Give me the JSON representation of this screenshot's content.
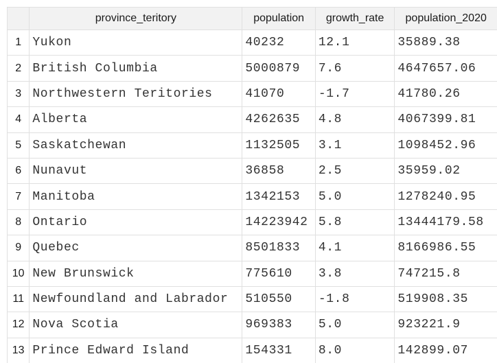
{
  "table": {
    "columns": [
      "province_teritory",
      "population",
      "growth_rate",
      "population_2020"
    ],
    "rows": [
      {
        "index": "1",
        "province_teritory": "Yukon",
        "population": "40232",
        "growth_rate": "12.1",
        "population_2020": "35889.38"
      },
      {
        "index": "2",
        "province_teritory": "British Columbia",
        "population": "5000879",
        "growth_rate": "7.6",
        "population_2020": "4647657.06"
      },
      {
        "index": "3",
        "province_teritory": "Northwestern Teritories",
        "population": "41070",
        "growth_rate": "-1.7",
        "population_2020": "41780.26"
      },
      {
        "index": "4",
        "province_teritory": "Alberta",
        "population": "4262635",
        "growth_rate": "4.8",
        "population_2020": "4067399.81"
      },
      {
        "index": "5",
        "province_teritory": "Saskatchewan",
        "population": "1132505",
        "growth_rate": "3.1",
        "population_2020": "1098452.96"
      },
      {
        "index": "6",
        "province_teritory": "Nunavut",
        "population": "36858",
        "growth_rate": "2.5",
        "population_2020": "35959.02"
      },
      {
        "index": "7",
        "province_teritory": "Manitoba",
        "population": "1342153",
        "growth_rate": "5.0",
        "population_2020": "1278240.95"
      },
      {
        "index": "8",
        "province_teritory": "Ontario",
        "population": "14223942",
        "growth_rate": "5.8",
        "population_2020": "13444179.58"
      },
      {
        "index": "9",
        "province_teritory": "Quebec",
        "population": "8501833",
        "growth_rate": "4.1",
        "population_2020": "8166986.55"
      },
      {
        "index": "10",
        "province_teritory": "New Brunswick",
        "population": "775610",
        "growth_rate": "3.8",
        "population_2020": "747215.8"
      },
      {
        "index": "11",
        "province_teritory": "Newfoundland and Labrador",
        "population": "510550",
        "growth_rate": "-1.8",
        "population_2020": "519908.35"
      },
      {
        "index": "12",
        "province_teritory": "Nova Scotia",
        "population": "969383",
        "growth_rate": "5.0",
        "population_2020": "923221.9"
      },
      {
        "index": "13",
        "province_teritory": "Prince Edward Island",
        "population": "154331",
        "growth_rate": "8.0",
        "population_2020": "142899.07"
      }
    ]
  }
}
